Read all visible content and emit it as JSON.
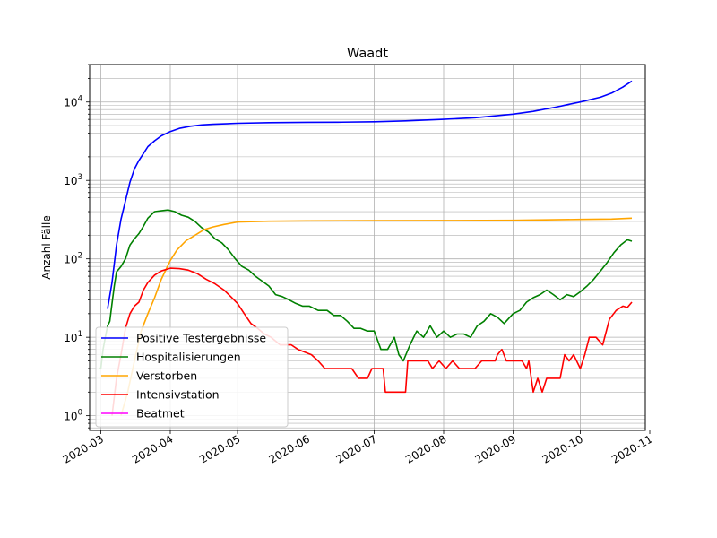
{
  "chart_data": {
    "type": "line",
    "title": "Waadt",
    "ylabel": "Anzahl Fälle",
    "xlabel": "",
    "yscale": "log",
    "ylim": [
      0.65,
      30000
    ],
    "xlim": [
      "2020-02-25",
      "2020-10-30"
    ],
    "grid": true,
    "grid_minor": true,
    "legend_position": "lower-left",
    "x_ticks": [
      {
        "date": "2020-03-01",
        "label": "2020-03"
      },
      {
        "date": "2020-04-01",
        "label": "2020-04"
      },
      {
        "date": "2020-05-01",
        "label": "2020-05"
      },
      {
        "date": "2020-06-01",
        "label": "2020-06"
      },
      {
        "date": "2020-07-01",
        "label": "2020-07"
      },
      {
        "date": "2020-08-01",
        "label": "2020-08"
      },
      {
        "date": "2020-09-01",
        "label": "2020-09"
      },
      {
        "date": "2020-10-01",
        "label": "2020-10"
      },
      {
        "date": "2020-11-01",
        "label": "2020-11"
      }
    ],
    "y_ticks": [
      {
        "value": 1,
        "label_base": "10",
        "label_exp": "0"
      },
      {
        "value": 10,
        "label_base": "10",
        "label_exp": "1"
      },
      {
        "value": 100,
        "label_base": "10",
        "label_exp": "2"
      },
      {
        "value": 1000,
        "label_base": "10",
        "label_exp": "3"
      },
      {
        "value": 10000,
        "label_base": "10",
        "label_exp": "4"
      }
    ],
    "series": [
      {
        "name": "Positive Testergebnisse",
        "color": "#0000ff",
        "points": [
          [
            "2020-03-04",
            23
          ],
          [
            "2020-03-06",
            50
          ],
          [
            "2020-03-08",
            150
          ],
          [
            "2020-03-10",
            320
          ],
          [
            "2020-03-12",
            550
          ],
          [
            "2020-03-14",
            950
          ],
          [
            "2020-03-16",
            1400
          ],
          [
            "2020-03-18",
            1800
          ],
          [
            "2020-03-20",
            2200
          ],
          [
            "2020-03-22",
            2700
          ],
          [
            "2020-03-25",
            3200
          ],
          [
            "2020-03-28",
            3700
          ],
          [
            "2020-04-01",
            4200
          ],
          [
            "2020-04-05",
            4600
          ],
          [
            "2020-04-10",
            4900
          ],
          [
            "2020-04-15",
            5100
          ],
          [
            "2020-04-20",
            5200
          ],
          [
            "2020-05-01",
            5350
          ],
          [
            "2020-05-15",
            5450
          ],
          [
            "2020-06-01",
            5500
          ],
          [
            "2020-06-15",
            5520
          ],
          [
            "2020-07-01",
            5600
          ],
          [
            "2020-07-15",
            5750
          ],
          [
            "2020-08-01",
            6000
          ],
          [
            "2020-08-15",
            6300
          ],
          [
            "2020-09-01",
            7000
          ],
          [
            "2020-09-10",
            7600
          ],
          [
            "2020-09-20",
            8600
          ],
          [
            "2020-10-01",
            10000
          ],
          [
            "2020-10-10",
            11500
          ],
          [
            "2020-10-15",
            13000
          ],
          [
            "2020-10-20",
            15500
          ],
          [
            "2020-10-24",
            18500
          ]
        ]
      },
      {
        "name": "Hospitalisierungen",
        "color": "#008000",
        "points": [
          [
            "2020-02-29",
            4
          ],
          [
            "2020-03-01",
            4
          ],
          [
            "2020-03-02",
            7
          ],
          [
            "2020-03-03",
            10
          ],
          [
            "2020-03-04",
            14
          ],
          [
            "2020-03-05",
            16
          ],
          [
            "2020-03-06",
            27
          ],
          [
            "2020-03-07",
            45
          ],
          [
            "2020-03-08",
            68
          ],
          [
            "2020-03-10",
            80
          ],
          [
            "2020-03-12",
            100
          ],
          [
            "2020-03-14",
            150
          ],
          [
            "2020-03-16",
            180
          ],
          [
            "2020-03-18",
            210
          ],
          [
            "2020-03-20",
            260
          ],
          [
            "2020-03-22",
            330
          ],
          [
            "2020-03-25",
            400
          ],
          [
            "2020-03-28",
            410
          ],
          [
            "2020-03-31",
            420
          ],
          [
            "2020-04-03",
            400
          ],
          [
            "2020-04-06",
            360
          ],
          [
            "2020-04-09",
            340
          ],
          [
            "2020-04-12",
            300
          ],
          [
            "2020-04-15",
            250
          ],
          [
            "2020-04-18",
            220
          ],
          [
            "2020-04-21",
            180
          ],
          [
            "2020-04-24",
            160
          ],
          [
            "2020-04-27",
            130
          ],
          [
            "2020-04-30",
            100
          ],
          [
            "2020-05-03",
            80
          ],
          [
            "2020-05-06",
            72
          ],
          [
            "2020-05-09",
            60
          ],
          [
            "2020-05-12",
            52
          ],
          [
            "2020-05-15",
            45
          ],
          [
            "2020-05-18",
            35
          ],
          [
            "2020-05-21",
            33
          ],
          [
            "2020-05-24",
            30
          ],
          [
            "2020-05-27",
            27
          ],
          [
            "2020-05-30",
            25
          ],
          [
            "2020-06-02",
            25
          ],
          [
            "2020-06-06",
            22
          ],
          [
            "2020-06-10",
            22
          ],
          [
            "2020-06-13",
            19
          ],
          [
            "2020-06-16",
            19
          ],
          [
            "2020-06-19",
            16
          ],
          [
            "2020-06-22",
            13
          ],
          [
            "2020-06-25",
            13
          ],
          [
            "2020-06-28",
            12
          ],
          [
            "2020-07-01",
            12
          ],
          [
            "2020-07-04",
            7
          ],
          [
            "2020-07-07",
            7
          ],
          [
            "2020-07-10",
            10
          ],
          [
            "2020-07-12",
            6
          ],
          [
            "2020-07-14",
            5
          ],
          [
            "2020-07-17",
            8
          ],
          [
            "2020-07-20",
            12
          ],
          [
            "2020-07-23",
            10
          ],
          [
            "2020-07-26",
            14
          ],
          [
            "2020-07-29",
            10
          ],
          [
            "2020-08-01",
            12
          ],
          [
            "2020-08-04",
            10
          ],
          [
            "2020-08-07",
            11
          ],
          [
            "2020-08-10",
            11
          ],
          [
            "2020-08-13",
            10
          ],
          [
            "2020-08-16",
            14
          ],
          [
            "2020-08-19",
            16
          ],
          [
            "2020-08-22",
            20
          ],
          [
            "2020-08-25",
            18
          ],
          [
            "2020-08-28",
            15
          ],
          [
            "2020-09-01",
            20
          ],
          [
            "2020-09-04",
            22
          ],
          [
            "2020-09-07",
            28
          ],
          [
            "2020-09-10",
            32
          ],
          [
            "2020-09-13",
            35
          ],
          [
            "2020-09-16",
            40
          ],
          [
            "2020-09-19",
            35
          ],
          [
            "2020-09-22",
            30
          ],
          [
            "2020-09-25",
            35
          ],
          [
            "2020-09-28",
            33
          ],
          [
            "2020-10-01",
            38
          ],
          [
            "2020-10-04",
            45
          ],
          [
            "2020-10-07",
            55
          ],
          [
            "2020-10-10",
            70
          ],
          [
            "2020-10-13",
            90
          ],
          [
            "2020-10-16",
            120
          ],
          [
            "2020-10-19",
            150
          ],
          [
            "2020-10-22",
            175
          ],
          [
            "2020-10-24",
            168
          ]
        ]
      },
      {
        "name": "Verstorben",
        "color": "#ffa500",
        "points": [
          [
            "2020-03-10",
            1
          ],
          [
            "2020-03-13",
            2
          ],
          [
            "2020-03-16",
            5
          ],
          [
            "2020-03-19",
            12
          ],
          [
            "2020-03-22",
            20
          ],
          [
            "2020-03-25",
            32
          ],
          [
            "2020-03-28",
            55
          ],
          [
            "2020-04-01",
            95
          ],
          [
            "2020-04-04",
            130
          ],
          [
            "2020-04-08",
            170
          ],
          [
            "2020-04-12",
            200
          ],
          [
            "2020-04-16",
            235
          ],
          [
            "2020-04-20",
            255
          ],
          [
            "2020-04-25",
            275
          ],
          [
            "2020-05-01",
            295
          ],
          [
            "2020-05-15",
            302
          ],
          [
            "2020-06-01",
            305
          ],
          [
            "2020-07-01",
            307
          ],
          [
            "2020-08-01",
            308
          ],
          [
            "2020-09-01",
            310
          ],
          [
            "2020-10-01",
            318
          ],
          [
            "2020-10-15",
            322
          ],
          [
            "2020-10-24",
            330
          ]
        ]
      },
      {
        "name": "Intensivstation",
        "color": "#ff0000",
        "points": [
          [
            "2020-03-06",
            1
          ],
          [
            "2020-03-08",
            3
          ],
          [
            "2020-03-10",
            6
          ],
          [
            "2020-03-12",
            13
          ],
          [
            "2020-03-14",
            20
          ],
          [
            "2020-03-16",
            25
          ],
          [
            "2020-03-18",
            28
          ],
          [
            "2020-03-20",
            40
          ],
          [
            "2020-03-22",
            50
          ],
          [
            "2020-03-25",
            62
          ],
          [
            "2020-03-28",
            70
          ],
          [
            "2020-04-01",
            76
          ],
          [
            "2020-04-05",
            75
          ],
          [
            "2020-04-09",
            72
          ],
          [
            "2020-04-13",
            65
          ],
          [
            "2020-04-17",
            55
          ],
          [
            "2020-04-21",
            48
          ],
          [
            "2020-04-25",
            40
          ],
          [
            "2020-04-28",
            33
          ],
          [
            "2020-05-01",
            27
          ],
          [
            "2020-05-04",
            20
          ],
          [
            "2020-05-07",
            15
          ],
          [
            "2020-05-10",
            13
          ],
          [
            "2020-05-13",
            11
          ],
          [
            "2020-05-16",
            10
          ],
          [
            "2020-05-20",
            8
          ],
          [
            "2020-05-25",
            8
          ],
          [
            "2020-05-28",
            7
          ],
          [
            "2020-06-03",
            6
          ],
          [
            "2020-06-06",
            5
          ],
          [
            "2020-06-09",
            4
          ],
          [
            "2020-06-15",
            4
          ],
          [
            "2020-06-21",
            4
          ],
          [
            "2020-06-24",
            3
          ],
          [
            "2020-06-28",
            3
          ],
          [
            "2020-06-30",
            4
          ],
          [
            "2020-07-05",
            4
          ],
          [
            "2020-07-06",
            2
          ],
          [
            "2020-07-15",
            2
          ],
          [
            "2020-07-16",
            5
          ],
          [
            "2020-07-25",
            5
          ],
          [
            "2020-07-27",
            4
          ],
          [
            "2020-07-30",
            5
          ],
          [
            "2020-08-02",
            4
          ],
          [
            "2020-08-05",
            5
          ],
          [
            "2020-08-08",
            4
          ],
          [
            "2020-08-15",
            4
          ],
          [
            "2020-08-18",
            5
          ],
          [
            "2020-08-24",
            5
          ],
          [
            "2020-08-25",
            6
          ],
          [
            "2020-08-27",
            7
          ],
          [
            "2020-08-29",
            5
          ],
          [
            "2020-09-05",
            5
          ],
          [
            "2020-09-07",
            4
          ],
          [
            "2020-09-08",
            5
          ],
          [
            "2020-09-10",
            2
          ],
          [
            "2020-09-12",
            3
          ],
          [
            "2020-09-14",
            2
          ],
          [
            "2020-09-16",
            3
          ],
          [
            "2020-09-22",
            3
          ],
          [
            "2020-09-24",
            6
          ],
          [
            "2020-09-26",
            5
          ],
          [
            "2020-09-28",
            6
          ],
          [
            "2020-10-01",
            4
          ],
          [
            "2020-10-03",
            6
          ],
          [
            "2020-10-05",
            10
          ],
          [
            "2020-10-08",
            10
          ],
          [
            "2020-10-11",
            8
          ],
          [
            "2020-10-14",
            17
          ],
          [
            "2020-10-17",
            22
          ],
          [
            "2020-10-20",
            25
          ],
          [
            "2020-10-22",
            24
          ],
          [
            "2020-10-24",
            28
          ]
        ]
      },
      {
        "name": "Beatmet",
        "color": "#ff00ff",
        "points": []
      }
    ]
  }
}
